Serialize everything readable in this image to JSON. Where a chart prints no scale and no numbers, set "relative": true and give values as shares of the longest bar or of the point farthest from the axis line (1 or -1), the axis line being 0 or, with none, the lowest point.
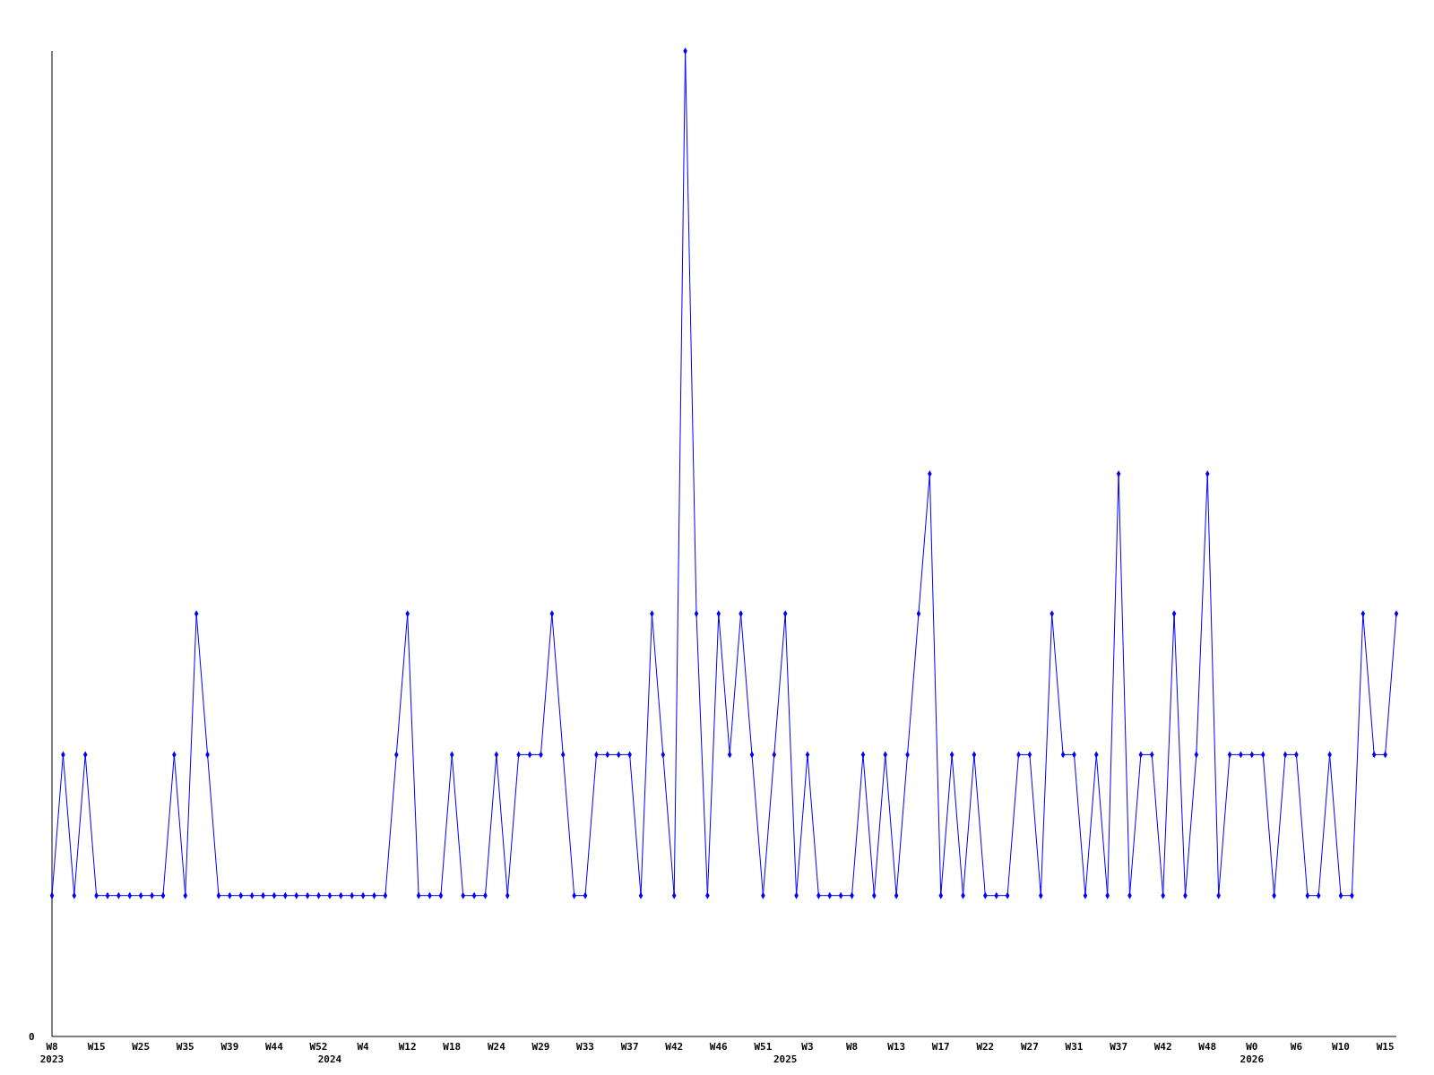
{
  "chart_data": {
    "type": "line",
    "relative": true,
    "marker": "diamond",
    "line_style": "solid",
    "categories": [
      "W8\n2023",
      null,
      null,
      null,
      "W15",
      null,
      null,
      null,
      "W25",
      null,
      null,
      null,
      "W35",
      null,
      null,
      null,
      "W39",
      null,
      null,
      null,
      "W44",
      null,
      null,
      null,
      "W52",
      "\n2024",
      null,
      null,
      "W4",
      null,
      null,
      null,
      "W12",
      null,
      null,
      null,
      "W18",
      null,
      null,
      null,
      "W24",
      null,
      null,
      null,
      "W29",
      null,
      null,
      null,
      "W33",
      null,
      null,
      null,
      "W37",
      null,
      null,
      null,
      "W42",
      null,
      null,
      null,
      "W46",
      null,
      null,
      null,
      "W51",
      null,
      "\n2025",
      null,
      "W3",
      null,
      null,
      null,
      "W8",
      null,
      null,
      null,
      "W13",
      null,
      null,
      null,
      "W17",
      null,
      null,
      null,
      "W22",
      null,
      null,
      null,
      "W27",
      null,
      null,
      null,
      "W31",
      null,
      null,
      null,
      "W37",
      null,
      null,
      null,
      "W42",
      null,
      null,
      null,
      "W48",
      null,
      null,
      null,
      "W0\n2026",
      null,
      null,
      null,
      "W6",
      null,
      null,
      null,
      "W10",
      null,
      null,
      null,
      "W15",
      null
    ],
    "series": [
      {
        "color": "#0000ff",
        "values": [
          0.143,
          0.286,
          0.143,
          0.286,
          0.143,
          0.143,
          0.143,
          0.143,
          0.143,
          0.143,
          0.143,
          0.286,
          0.143,
          0.429,
          0.286,
          0.143,
          0.143,
          0.143,
          0.143,
          0.143,
          0.143,
          0.143,
          0.143,
          0.143,
          0.143,
          0.143,
          0.143,
          0.143,
          0.143,
          0.143,
          0.143,
          0.286,
          0.429,
          0.143,
          0.143,
          0.143,
          0.286,
          0.143,
          0.143,
          0.143,
          0.286,
          0.143,
          0.286,
          0.286,
          0.286,
          0.429,
          0.286,
          0.143,
          0.143,
          0.286,
          0.286,
          0.286,
          0.286,
          0.143,
          0.429,
          0.286,
          0.143,
          1,
          0.429,
          0.143,
          0.429,
          0.286,
          0.429,
          0.286,
          0.143,
          0.286,
          0.429,
          0.143,
          0.286,
          0.143,
          0.143,
          0.143,
          0.143,
          0.286,
          0.143,
          0.286,
          0.143,
          0.286,
          0.429,
          0.571,
          0.143,
          0.286,
          0.143,
          0.286,
          0.143,
          0.143,
          0.143,
          0.286,
          0.286,
          0.143,
          0.429,
          0.286,
          0.286,
          0.143,
          0.286,
          0.143,
          0.571,
          0.143,
          0.286,
          0.286,
          0.143,
          0.429,
          0.143,
          0.286,
          0.571,
          0.143,
          0.286,
          0.286,
          0.286,
          0.286,
          0.143,
          0.286,
          0.286,
          0.143,
          0.143,
          0.286,
          0.143,
          0.143,
          0.429,
          0.286,
          0.286,
          0.429
        ]
      }
    ],
    "annotations": [
      "0"
    ]
  }
}
